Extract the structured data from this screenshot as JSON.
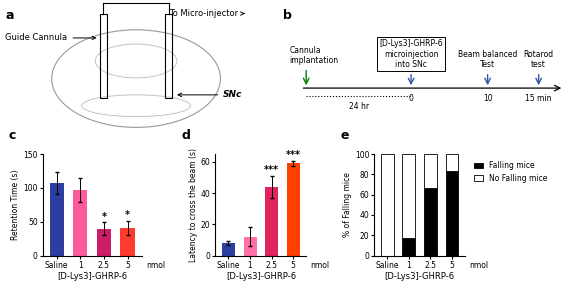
{
  "diagram": {
    "panel": "a",
    "guide": "Guide Cannula",
    "injector": "To Micro-injector",
    "region": "SNc"
  },
  "timeline": {
    "panel": "b",
    "start": "Cannula\nimplantation",
    "interval": "24 hr",
    "injection": "[D-Lys3]-GHRP-6\nmicroinjection\ninto SNc",
    "tests": [
      "Beam balanced\nTest",
      "Rotarod\ntest"
    ],
    "time_labels": [
      "0",
      "10",
      "15 min"
    ]
  },
  "chart_data": [
    {
      "panel": "c",
      "type": "bar",
      "categories": [
        "Saline",
        "1",
        "2.5",
        "5"
      ],
      "values": [
        107,
        97,
        40,
        41
      ],
      "errors": [
        16,
        18,
        9,
        10
      ],
      "colors": [
        "#2c3e9f",
        "#ff5aa0",
        "#cc1d6b",
        "#ff3b2f"
      ],
      "xlabel": "[D-Lys3]-GHRP-6",
      "unit": "nmol",
      "ylabel": "Retention Time (s)",
      "ylim": [
        0,
        150
      ],
      "yticks": [
        0,
        50,
        100,
        150
      ],
      "annotations": [
        {
          "category": "2.5",
          "text": "*"
        },
        {
          "category": "5",
          "text": "*"
        }
      ]
    },
    {
      "panel": "d",
      "type": "bar",
      "categories": [
        "Saline",
        "1",
        "2.5",
        "5"
      ],
      "values": [
        8,
        12,
        44,
        59
      ],
      "errors": [
        1.5,
        6,
        7,
        1.5
      ],
      "colors": [
        "#2c3e9f",
        "#ff6fa8",
        "#e0245e",
        "#ff4000"
      ],
      "xlabel": "[D-Lys3]-GHRP-6",
      "unit": "nmol",
      "ylabel": "Latency to cross the beam (s)",
      "ylim": [
        0,
        65
      ],
      "yticks": [
        0,
        20,
        40,
        60
      ],
      "annotations": [
        {
          "category": "2.5",
          "text": "***"
        },
        {
          "category": "5",
          "text": "***"
        }
      ]
    },
    {
      "panel": "e",
      "type": "bar",
      "stacked": true,
      "categories": [
        "Saline",
        "1",
        "2.5",
        "5"
      ],
      "series": [
        {
          "name": "Falling mice",
          "color": "#000000",
          "values": [
            0,
            17,
            67,
            83
          ]
        },
        {
          "name": "No Falling mice",
          "color": "#ffffff",
          "values": [
            100,
            83,
            33,
            17
          ]
        }
      ],
      "legend": "upper left",
      "xlabel": "[D-Lys3]-GHRP-6",
      "unit": "nmol",
      "ylabel": "% of Falling mice",
      "ylim": [
        0,
        100
      ],
      "yticks": [
        0,
        20,
        40,
        60,
        80,
        100
      ]
    }
  ]
}
